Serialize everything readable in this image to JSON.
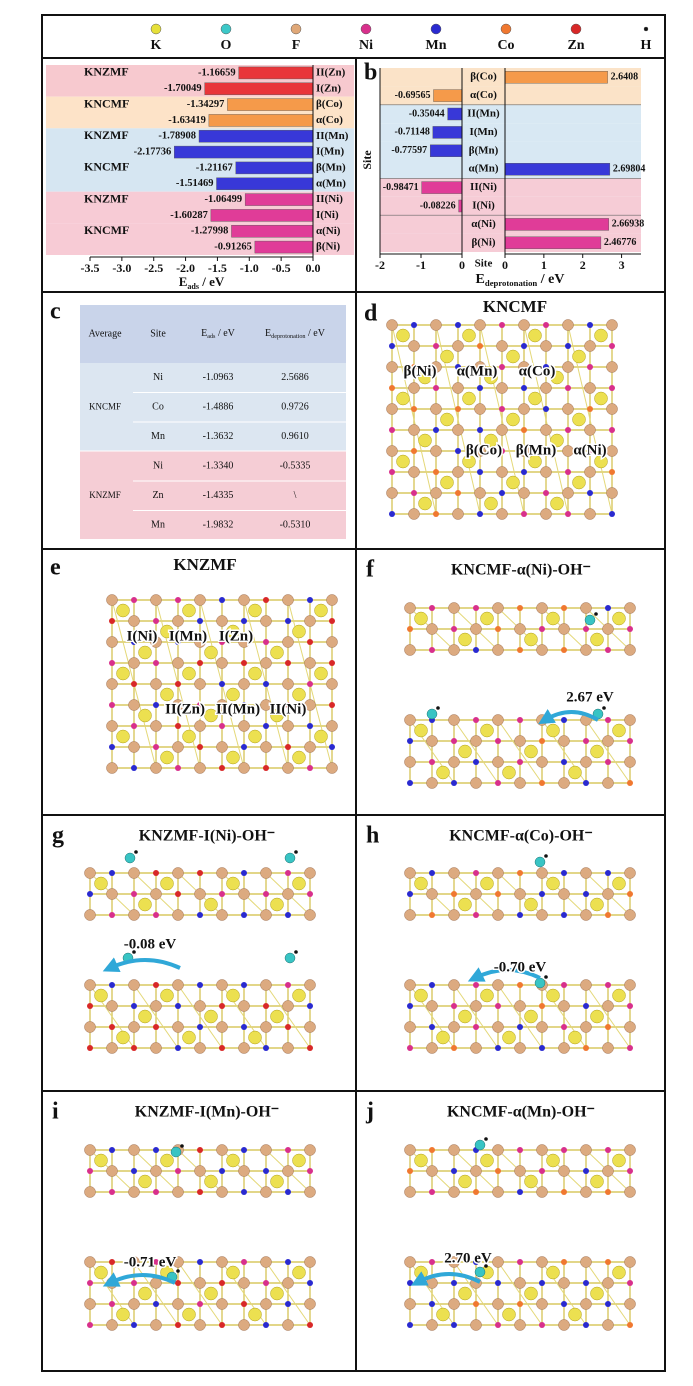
{
  "legend": [
    {
      "name": "K",
      "color": "#e6e03a"
    },
    {
      "name": "O",
      "color": "#3cc8c8"
    },
    {
      "name": "F",
      "color": "#e0a878"
    },
    {
      "name": "Ni",
      "color": "#d8308c"
    },
    {
      "name": "Mn",
      "color": "#2a2ad0"
    },
    {
      "name": "Co",
      "color": "#f07830"
    },
    {
      "name": "Zn",
      "color": "#d82828"
    },
    {
      "name": "H",
      "color": "#111111"
    }
  ],
  "chart_data": [
    {
      "type": "bar",
      "panel": "a",
      "orientation": "horizontal",
      "categories": [
        "II(Zn)",
        "I(Zn)",
        "β(Co)",
        "α(Co)",
        "II(Mn)",
        "I(Mn)",
        "β(Mn)",
        "α(Mn)",
        "II(Ni)",
        "I(Ni)",
        "α(Ni)",
        "β(Ni)"
      ],
      "values": [
        -1.16659,
        -1.70049,
        -1.34297,
        -1.63419,
        -1.78908,
        -2.17736,
        -1.21167,
        -1.51469,
        -1.06499,
        -1.60287,
        -1.27998,
        -0.91265
      ],
      "colors": [
        "#e8353a",
        "#e8353a",
        "#f59a4a",
        "#f59a4a",
        "#3838d8",
        "#3838d8",
        "#3838d8",
        "#3838d8",
        "#e03c98",
        "#e03c98",
        "#e03c98",
        "#e03c98"
      ],
      "group_labels": [
        "KNZMF",
        "KNCMF",
        "KNZMF",
        "KNCMF",
        "KNZMF",
        "KNCMF"
      ],
      "group_backgrounds": [
        "#f7c9cf",
        "#fde3c8",
        "#d6e6f2",
        "#d6e6f2",
        "#f7cbd5",
        "#f7cbd5"
      ],
      "xlabel": {
        "main": "E",
        "sub": "ads",
        "rest": " / eV"
      },
      "xlim": [
        -3.5,
        0
      ],
      "xticks": [
        -3.5,
        {
          "value": -3,
          "label": "-3.0"
        },
        -2.5,
        {
          "value": -2,
          "label": "-2.0"
        },
        -1.5,
        {
          "value": -1,
          "label": "-1.0"
        },
        -0.5,
        {
          "value": 0,
          "label": "0.0"
        }
      ]
    },
    {
      "type": "bar",
      "panel": "b",
      "orientation": "horizontal",
      "categories": [
        "β(Co)",
        "α(Co)",
        "II(Mn)",
        "I(Mn)",
        "β(Mn)",
        "α(Mn)",
        "II(Ni)",
        "I(Ni)",
        "α(Ni)",
        "β(Ni)"
      ],
      "values": [
        2.6408,
        -0.69565,
        -0.35044,
        -0.71148,
        -0.77597,
        2.69804,
        -0.98471,
        -0.08226,
        2.66938,
        2.46776
      ],
      "colors": [
        "#f59a4a",
        "#f59a4a",
        "#3838d8",
        "#3838d8",
        "#3838d8",
        "#3838d8",
        "#e03c98",
        "#e03c98",
        "#e03c98",
        "#e03c98"
      ],
      "row_backgrounds": [
        "#fbe3c8",
        "#fbe3c8",
        "#d8e8f3",
        "#d8e8f3",
        "#d8e8f3",
        "#d8e8f3",
        "#f6ccd6",
        "#f6ccd6",
        "#f6ccd6",
        "#f6ccd6"
      ],
      "ylabel": "Site",
      "category_axis_label": "Site",
      "xlabel": {
        "main": "E",
        "sub": "deprotonation",
        "rest": " / eV"
      },
      "xlim": [
        -2,
        0
      ],
      "xticks": [
        -2,
        -1,
        0
      ],
      "x2lim": [
        0,
        3.5
      ],
      "x2ticks": [
        0,
        1,
        2,
        3
      ]
    }
  ],
  "table": {
    "panel": "c",
    "header": [
      "Average",
      "Site",
      {
        "main": "E",
        "sub": "ads",
        "rest": " / eV"
      },
      {
        "main": "E",
        "sub": "deprotonation",
        "rest": " / eV"
      }
    ],
    "groups": [
      {
        "name": "KNCMF",
        "color": "#dce6f1",
        "rows": [
          [
            "Ni",
            "-1.0963",
            "2.5686"
          ],
          [
            "Co",
            "-1.4886",
            "0.9726"
          ],
          [
            "Mn",
            "-1.3632",
            "0.9610"
          ]
        ]
      },
      {
        "name": "KNZMF",
        "color": "#f5cdd5",
        "rows": [
          [
            "Ni",
            "-1.3340",
            "-0.5335"
          ],
          [
            "Zn",
            "-1.4335",
            "\\"
          ],
          [
            "Mn",
            "-1.9832",
            "-0.5310"
          ]
        ]
      }
    ]
  },
  "panels": [
    {
      "letter": "d",
      "title": "KNCMF",
      "labels": [
        "β(Ni)",
        "α(Mn)",
        "α(Co)",
        "β(Co)",
        "β(Mn)",
        "α(Ni)"
      ]
    },
    {
      "letter": "e",
      "title": "KNZMF",
      "labels": [
        "I(Ni)",
        "I(Mn)",
        "I(Zn)",
        "II(Zn)",
        "II(Mn)",
        "II(Ni)"
      ]
    },
    {
      "letter": "f",
      "title": "KNCMF-α(Ni)-OH⁻",
      "energy": "2.67 eV",
      "energy_color": "#c0309a"
    },
    {
      "letter": "g",
      "title": "KNZMF-I(Ni)-OH⁻",
      "energy": "-0.08 eV",
      "energy_color": "#c0309a"
    },
    {
      "letter": "h",
      "title": "KNCMF-α(Co)-OH⁻",
      "energy": "-0.70 eV",
      "energy_color": "#e8b020"
    },
    {
      "letter": "i",
      "title": "KNZMF-I(Mn)-OH⁻",
      "energy": "-0.71 eV",
      "energy_color": "#2060b0"
    },
    {
      "letter": "j",
      "title": "KNCMF-α(Mn)-OH⁻",
      "energy": "2.70 eV",
      "energy_color": "#2060b0"
    }
  ]
}
